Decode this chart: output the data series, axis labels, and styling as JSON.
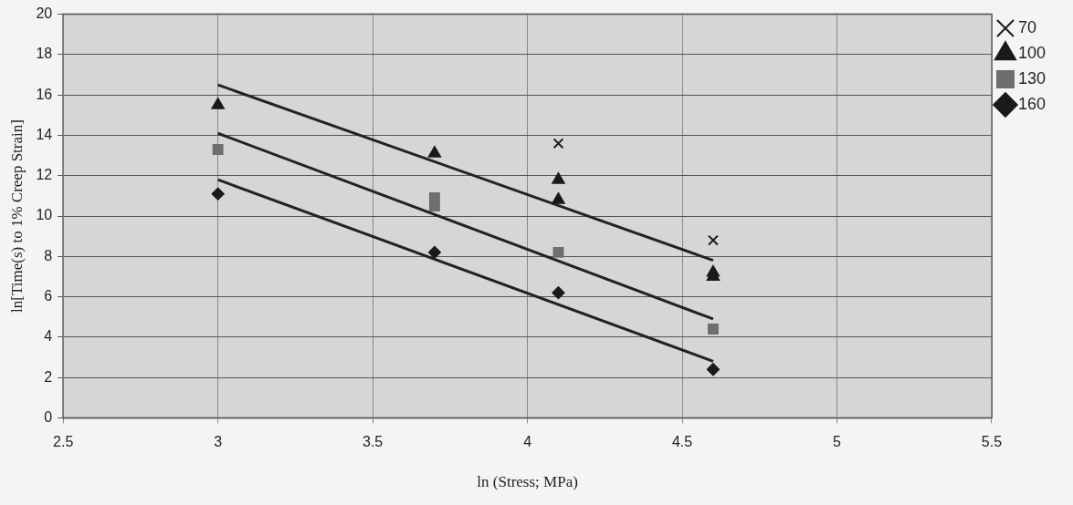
{
  "chart_data": {
    "type": "scatter",
    "xlabel": "ln (Stress; MPa)",
    "ylabel": "ln[Time(s) to 1% Creep Strain]",
    "xlim": [
      2.5,
      5.5
    ],
    "xticks": [
      2.5,
      3,
      3.5,
      4,
      4.5,
      5,
      5.5
    ],
    "ylim": [
      0,
      20
    ],
    "yticks": [
      0,
      2,
      4,
      6,
      8,
      10,
      12,
      14,
      16,
      18,
      20
    ],
    "grid": true,
    "legend": "top right",
    "series": [
      {
        "name": "70",
        "color": "#1a1a1a",
        "marker": "cross",
        "x": [
          4.1,
          4.6
        ],
        "values": [
          13.6,
          8.8
        ]
      },
      {
        "name": "100",
        "color": "#1a1a1a",
        "marker": "triangle",
        "x": [
          3,
          3.7,
          4.1,
          4.1,
          4.6,
          4.6
        ],
        "values": [
          15.5,
          13.1,
          11.8,
          10.8,
          7.2,
          7.0
        ]
      },
      {
        "name": "130",
        "color": "#6e6e6e",
        "marker": "square",
        "x": [
          3,
          3.7,
          3.7,
          4.1,
          4.6
        ],
        "values": [
          13.3,
          10.9,
          10.5,
          8.2,
          4.4
        ]
      },
      {
        "name": "160",
        "color": "#1a1a1a",
        "marker": "diamond",
        "x": [
          3,
          3.7,
          4.1,
          4.6
        ],
        "values": [
          11.1,
          8.2,
          6.2,
          2.4
        ]
      },
      {
        "type": "line",
        "color": "#222222",
        "marker": "none",
        "x": [
          3,
          4.6
        ],
        "values": [
          16.5,
          7.8
        ]
      },
      {
        "type": "line",
        "color": "#222222",
        "marker": "none",
        "x": [
          3,
          4.6
        ],
        "values": [
          14.1,
          4.9
        ]
      },
      {
        "type": "line",
        "color": "#222222",
        "marker": "none",
        "x": [
          3,
          4.6
        ],
        "values": [
          11.8,
          2.8
        ]
      }
    ]
  }
}
